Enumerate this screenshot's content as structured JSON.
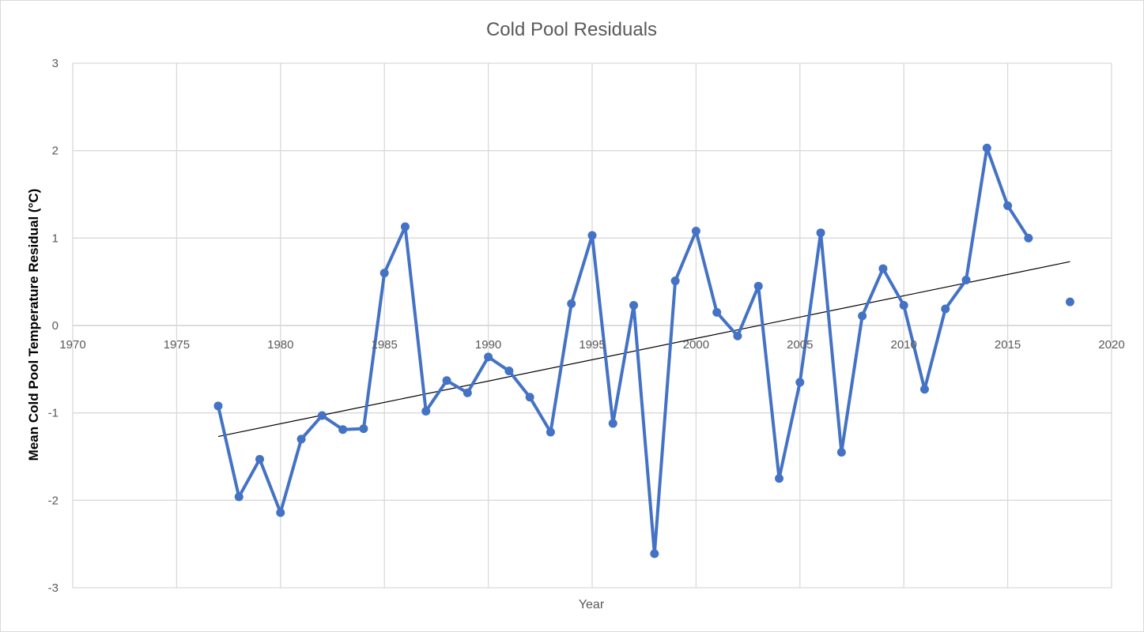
{
  "chart_data": {
    "type": "line",
    "title": "Cold Pool Residuals",
    "xlabel": "Year",
    "ylabel": "Mean Cold Pool Temperature Residual (°C)",
    "xlim": [
      1970,
      2020
    ],
    "ylim": [
      -3,
      3
    ],
    "x_ticks": [
      1970,
      1975,
      1980,
      1985,
      1990,
      1995,
      2000,
      2005,
      2010,
      2015,
      2020
    ],
    "y_ticks": [
      3,
      2,
      1,
      0,
      -1,
      -2,
      -3
    ],
    "x_tick_labels": [
      "1970",
      "1975",
      "1980",
      "1985",
      "1990",
      "1995",
      "2000",
      "2005",
      "2010",
      "2015",
      "2020"
    ],
    "y_tick_labels": [
      "3",
      "2",
      "1",
      "0",
      "-1",
      "-2",
      "-3"
    ],
    "grid": true,
    "legend": "none",
    "series": [
      {
        "color": "#4472c4",
        "x": [
          1977,
          1978,
          1979,
          1980,
          1981,
          1982,
          1983,
          1984,
          1985,
          1986,
          1987,
          1988,
          1989,
          1990,
          1991,
          1992,
          1993,
          1994,
          1995,
          1996,
          1997,
          1998,
          1999,
          2000,
          2001,
          2002,
          2003,
          2004,
          2005,
          2006,
          2007,
          2008,
          2009,
          2010,
          2011,
          2012,
          2013,
          2014,
          2015,
          2016,
          2018
        ],
        "y": [
          -0.92,
          -1.96,
          -1.53,
          -2.14,
          -1.3,
          -1.03,
          -1.19,
          -1.18,
          0.6,
          1.13,
          -0.98,
          -0.63,
          -0.77,
          -0.36,
          -0.52,
          -0.82,
          -1.22,
          0.25,
          1.03,
          -1.12,
          0.23,
          -2.61,
          0.51,
          1.08,
          0.15,
          -0.12,
          0.45,
          -1.75,
          -0.65,
          1.06,
          -1.45,
          0.11,
          0.65,
          0.23,
          -0.73,
          0.19,
          0.52,
          2.03,
          1.37,
          1.0,
          0.27
        ],
        "connected_until_x": 2016
      }
    ],
    "trendline": {
      "color": "#000000",
      "x": [
        1977,
        2018
      ],
      "y": [
        -1.27,
        0.73
      ]
    }
  }
}
